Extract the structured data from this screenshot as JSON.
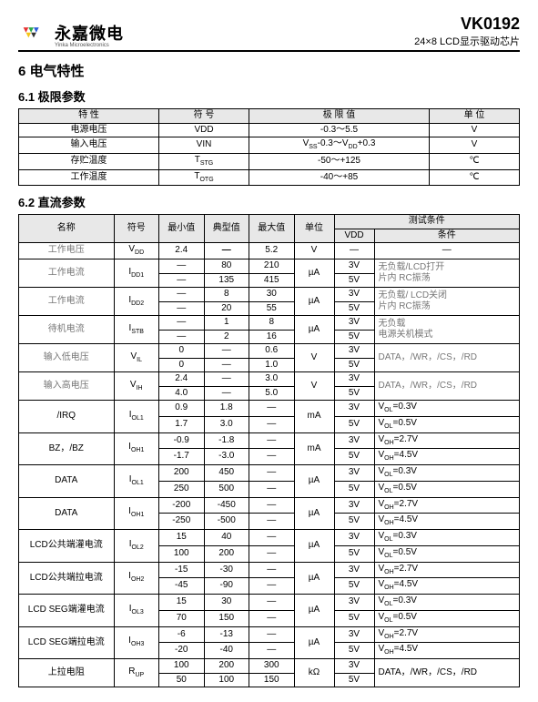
{
  "logo": {
    "cn": "永嘉微电",
    "en": "Yinka Microelectronics"
  },
  "part": {
    "number": "VK0192",
    "desc": "24×8 LCD显示驱动芯片"
  },
  "sec6": "6 电气特性",
  "sec61": "6.1 极限参数",
  "t61": {
    "headers": [
      "特 性",
      "符 号",
      "极 限 值",
      "单 位"
    ],
    "rows": [
      [
        "电源电压",
        "VDD",
        "-0.3～5.5",
        "V"
      ],
      [
        "输入电压",
        "VIN",
        "V<sub>SS</sub>-0.3～V<sub>DD</sub>+0.3",
        "V"
      ],
      [
        "存贮温度",
        "T<sub>STG</sub>",
        "-50～+125",
        "℃"
      ],
      [
        "工作温度",
        "T<sub>OTG</sub>",
        "-40～+85",
        "℃"
      ]
    ]
  },
  "sec62": "6.2 直流参数",
  "t62": {
    "h1": [
      "名称",
      "符号",
      "最小值",
      "典型值",
      "最大值",
      "单位",
      "测试条件"
    ],
    "h2": [
      "VDD",
      "条件"
    ],
    "rows": [
      {
        "name": "工作电压",
        "sym": "V<sub>DD</sub>",
        "min": "2.4",
        "typ": "—",
        "max": "5.2",
        "unit": "V",
        "vdd": "—",
        "cond": "—",
        "rs": 1
      },
      {
        "name": "工作电流",
        "sym": "I<sub>DD1</sub>",
        "rs": 2,
        "r": [
          [
            "—",
            "80",
            "210",
            "µA",
            "3V"
          ],
          [
            "—",
            "135",
            "415",
            "",
            "5V"
          ]
        ],
        "cond": "无负载/LCD打开\n片内 RC振荡",
        "gray": true
      },
      {
        "name": "工作电流",
        "sym": "I<sub>DD2</sub>",
        "rs": 2,
        "r": [
          [
            "—",
            "8",
            "30",
            "µA",
            "3V"
          ],
          [
            "—",
            "20",
            "55",
            "",
            "5V"
          ]
        ],
        "cond": "无负载/ LCD关闭\n片内 RC振荡",
        "gray": true
      },
      {
        "name": "待机电流",
        "sym": "I<sub>STB</sub>",
        "rs": 2,
        "r": [
          [
            "—",
            "1",
            "8",
            "µA",
            "3V"
          ],
          [
            "—",
            "2",
            "16",
            "",
            "5V"
          ]
        ],
        "cond": "无负载\n电源关机模式",
        "gray": true
      },
      {
        "name": "输入低电压",
        "sym": "V<sub>IL</sub>",
        "rs": 2,
        "r": [
          [
            "0",
            "—",
            "0.6",
            "V",
            "3V"
          ],
          [
            "0",
            "—",
            "1.0",
            "",
            "5V"
          ]
        ],
        "cond": "DATA，/WR，/CS，/RD",
        "gray": true
      },
      {
        "name": "输入高电压",
        "sym": "V<sub>IH</sub>",
        "rs": 2,
        "r": [
          [
            "2.4",
            "—",
            "3.0",
            "V",
            "3V"
          ],
          [
            "4.0",
            "—",
            "5.0",
            "",
            "5V"
          ]
        ],
        "cond": "DATA，/WR，/CS，/RD",
        "gray": true
      },
      {
        "name": "/IRQ",
        "sym": "I<sub>OL1</sub>",
        "rs": 2,
        "r": [
          [
            "0.9",
            "1.8",
            "—",
            "mA",
            "3V"
          ],
          [
            "1.7",
            "3.0",
            "—",
            "",
            "5V"
          ]
        ],
        "cond": [
          "V<sub>OL</sub>=0.3V",
          "V<sub>OL</sub>=0.5V"
        ]
      },
      {
        "name": "BZ，/BZ",
        "sym": "I<sub>OH1</sub>",
        "rs": 2,
        "r": [
          [
            "-0.9",
            "-1.8",
            "—",
            "mA",
            "3V"
          ],
          [
            "-1.7",
            "-3.0",
            "—",
            "",
            "5V"
          ]
        ],
        "cond": [
          "V<sub>OH</sub>=2.7V",
          "V<sub>OH</sub>=4.5V"
        ]
      },
      {
        "name": "DATA",
        "sym": "I<sub>OL1</sub>",
        "rs": 2,
        "r": [
          [
            "200",
            "450",
            "—",
            "µA",
            "3V"
          ],
          [
            "250",
            "500",
            "—",
            "",
            "5V"
          ]
        ],
        "cond": [
          "V<sub>OL</sub>=0.3V",
          "V<sub>OL</sub>=0.5V"
        ]
      },
      {
        "name": "DATA",
        "sym": "I<sub>OH1</sub>",
        "rs": 2,
        "r": [
          [
            "-200",
            "-450",
            "—",
            "µA",
            "3V"
          ],
          [
            "-250",
            "-500",
            "—",
            "",
            "5V"
          ]
        ],
        "cond": [
          "V<sub>OH</sub>=2.7V",
          "V<sub>OH</sub>=4.5V"
        ]
      },
      {
        "name": "LCD公共端灌电流",
        "sym": "I<sub>OL2</sub>",
        "rs": 2,
        "r": [
          [
            "15",
            "40",
            "—",
            "µA",
            "3V"
          ],
          [
            "100",
            "200",
            "—",
            "",
            "5V"
          ]
        ],
        "cond": [
          "V<sub>OL</sub>=0.3V",
          "V<sub>OL</sub>=0.5V"
        ]
      },
      {
        "name": "LCD公共端拉电流",
        "sym": "I<sub>OH2</sub>",
        "rs": 2,
        "r": [
          [
            "-15",
            "-30",
            "—",
            "µA",
            "3V"
          ],
          [
            "-45",
            "-90",
            "—",
            "",
            "5V"
          ]
        ],
        "cond": [
          "V<sub>OH</sub>=2.7V",
          "V<sub>OH</sub>=4.5V"
        ]
      },
      {
        "name": "LCD SEG端灌电流",
        "sym": "I<sub>OL3</sub>",
        "rs": 2,
        "r": [
          [
            "15",
            "30",
            "—",
            "µA",
            "3V"
          ],
          [
            "70",
            "150",
            "—",
            "",
            "5V"
          ]
        ],
        "cond": [
          "V<sub>OL</sub>=0.3V",
          "V<sub>OL</sub>=0.5V"
        ]
      },
      {
        "name": "LCD SEG端拉电流",
        "sym": "I<sub>OH3</sub>",
        "rs": 2,
        "r": [
          [
            "-6",
            "-13",
            "—",
            "µA",
            "3V"
          ],
          [
            "-20",
            "-40",
            "—",
            "",
            "5V"
          ]
        ],
        "cond": [
          "V<sub>OH</sub>=2.7V",
          "V<sub>OH</sub>=4.5V"
        ]
      },
      {
        "name": "上拉电阻",
        "sym": "R<sub>UP</sub>",
        "rs": 2,
        "r": [
          [
            "100",
            "200",
            "300",
            "kΩ",
            "3V"
          ],
          [
            "50",
            "100",
            "150",
            "",
            "5V"
          ]
        ],
        "cond": "DATA，/WR，/CS，/RD"
      }
    ]
  }
}
